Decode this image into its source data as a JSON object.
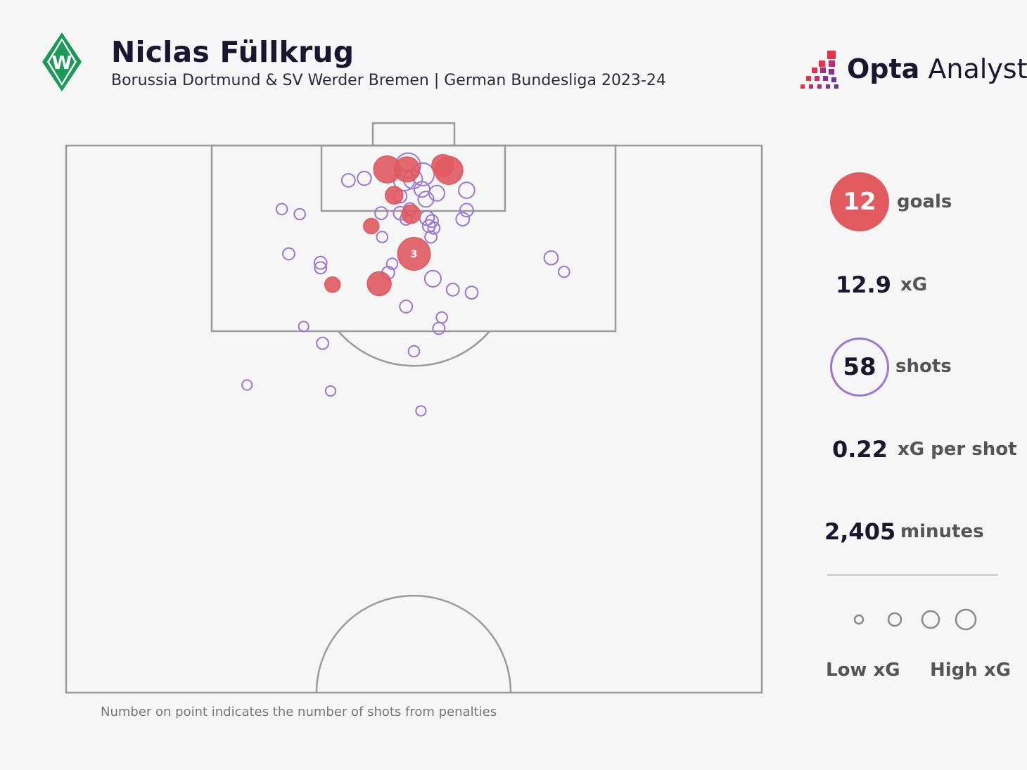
{
  "header": {
    "title": "Niclas Füllkrug",
    "subtitle": "Borussia Dortmund & SV Werder Bremen | German Bundesliga 2023-24",
    "brand_strong": "Opta",
    "brand_light": " Analyst",
    "crest_icon": "werder-bremen-crest-icon"
  },
  "stats": {
    "goals_value": "12",
    "goals_label": "goals",
    "xg_value": "12.9",
    "xg_label": "xG",
    "shots_value": "58",
    "shots_label": "shots",
    "xg_per_shot_value": "0.22",
    "xg_per_shot_label": "xG per shot",
    "minutes_value": "2,405",
    "minutes_label": "minutes"
  },
  "legend": {
    "low_label": "Low xG",
    "high_label": "High xG"
  },
  "footnote": "Number on point indicates the number of shots from penalties",
  "colors": {
    "goal": "#e05a60",
    "shot": "#9a76d8",
    "pitch_line": "#9a9a9a"
  },
  "chart_data": {
    "type": "scatter",
    "x_unit": "yards from left touchline",
    "y_unit": "yards from goal line",
    "xlim": [
      0,
      70
    ],
    "ylim": [
      0,
      55
    ],
    "shots": [
      {
        "x": 32.3,
        "y": 2.4,
        "xg": 0.48,
        "goal": true
      },
      {
        "x": 34.3,
        "y": 2.4,
        "xg": 0.4,
        "goal": true
      },
      {
        "x": 37.9,
        "y": 2.0,
        "xg": 0.28,
        "goal": true
      },
      {
        "x": 38.5,
        "y": 2.5,
        "xg": 0.52,
        "goal": true
      },
      {
        "x": 34.4,
        "y": 2.0,
        "xg": 0.38,
        "goal": false
      },
      {
        "x": 35.9,
        "y": 2.9,
        "xg": 0.3,
        "goal": false
      },
      {
        "x": 34.0,
        "y": 3.5,
        "xg": 0.24,
        "goal": false
      },
      {
        "x": 34.9,
        "y": 3.4,
        "xg": 0.18,
        "goal": false
      },
      {
        "x": 28.4,
        "y": 3.5,
        "xg": 0.06,
        "goal": false
      },
      {
        "x": 30.0,
        "y": 3.3,
        "xg": 0.07,
        "goal": false
      },
      {
        "x": 35.8,
        "y": 4.4,
        "xg": 0.1,
        "goal": false
      },
      {
        "x": 37.3,
        "y": 4.8,
        "xg": 0.1,
        "goal": false
      },
      {
        "x": 40.3,
        "y": 4.5,
        "xg": 0.11,
        "goal": false
      },
      {
        "x": 33.0,
        "y": 5.0,
        "xg": 0.15,
        "goal": true
      },
      {
        "x": 33.6,
        "y": 5.1,
        "xg": 0.06,
        "goal": false
      },
      {
        "x": 36.2,
        "y": 5.4,
        "xg": 0.1,
        "goal": false
      },
      {
        "x": 34.6,
        "y": 6.4,
        "xg": 0.05,
        "goal": false
      },
      {
        "x": 34.7,
        "y": 6.9,
        "xg": 0.18,
        "goal": true
      },
      {
        "x": 33.6,
        "y": 6.8,
        "xg": 0.06,
        "goal": false
      },
      {
        "x": 34.2,
        "y": 7.4,
        "xg": 0.04,
        "goal": false
      },
      {
        "x": 36.3,
        "y": 7.3,
        "xg": 0.08,
        "goal": false
      },
      {
        "x": 36.8,
        "y": 7.6,
        "xg": 0.05,
        "goal": false
      },
      {
        "x": 36.5,
        "y": 8.1,
        "xg": 0.05,
        "goal": false
      },
      {
        "x": 37.0,
        "y": 8.3,
        "xg": 0.04,
        "goal": false
      },
      {
        "x": 31.7,
        "y": 6.8,
        "xg": 0.05,
        "goal": false
      },
      {
        "x": 40.3,
        "y": 6.5,
        "xg": 0.06,
        "goal": false
      },
      {
        "x": 39.9,
        "y": 7.4,
        "xg": 0.06,
        "goal": false
      },
      {
        "x": 30.7,
        "y": 8.1,
        "xg": 0.1,
        "goal": true
      },
      {
        "x": 21.7,
        "y": 6.4,
        "xg": 0.03,
        "goal": false
      },
      {
        "x": 23.5,
        "y": 6.9,
        "xg": 0.03,
        "goal": false
      },
      {
        "x": 31.8,
        "y": 9.2,
        "xg": 0.03,
        "goal": false
      },
      {
        "x": 36.7,
        "y": 9.2,
        "xg": 0.04,
        "goal": false
      },
      {
        "x": 35.0,
        "y": 10.9,
        "xg": 0.76,
        "goal": true,
        "penalties": 3
      },
      {
        "x": 22.4,
        "y": 10.9,
        "xg": 0.04,
        "goal": false
      },
      {
        "x": 25.6,
        "y": 11.8,
        "xg": 0.05,
        "goal": false
      },
      {
        "x": 25.6,
        "y": 12.3,
        "xg": 0.04,
        "goal": false
      },
      {
        "x": 32.8,
        "y": 11.9,
        "xg": 0.03,
        "goal": false
      },
      {
        "x": 32.4,
        "y": 12.8,
        "xg": 0.05,
        "goal": false
      },
      {
        "x": 26.8,
        "y": 14.0,
        "xg": 0.1,
        "goal": true
      },
      {
        "x": 31.5,
        "y": 13.9,
        "xg": 0.35,
        "goal": true
      },
      {
        "x": 36.9,
        "y": 13.4,
        "xg": 0.12,
        "goal": false
      },
      {
        "x": 38.9,
        "y": 14.5,
        "xg": 0.05,
        "goal": false
      },
      {
        "x": 40.8,
        "y": 14.8,
        "xg": 0.05,
        "goal": false
      },
      {
        "x": 48.8,
        "y": 11.3,
        "xg": 0.07,
        "goal": false
      },
      {
        "x": 50.1,
        "y": 12.7,
        "xg": 0.03,
        "goal": false
      },
      {
        "x": 34.2,
        "y": 16.2,
        "xg": 0.05,
        "goal": false
      },
      {
        "x": 37.8,
        "y": 17.3,
        "xg": 0.03,
        "goal": false
      },
      {
        "x": 37.5,
        "y": 18.4,
        "xg": 0.04,
        "goal": false
      },
      {
        "x": 23.9,
        "y": 18.2,
        "xg": 0.02,
        "goal": false
      },
      {
        "x": 25.8,
        "y": 19.9,
        "xg": 0.04,
        "goal": false
      },
      {
        "x": 35.0,
        "y": 20.7,
        "xg": 0.03,
        "goal": false
      },
      {
        "x": 18.2,
        "y": 24.1,
        "xg": 0.02,
        "goal": false
      },
      {
        "x": 26.6,
        "y": 24.7,
        "xg": 0.02,
        "goal": false
      },
      {
        "x": 35.7,
        "y": 26.7,
        "xg": 0.02,
        "goal": false
      }
    ]
  }
}
